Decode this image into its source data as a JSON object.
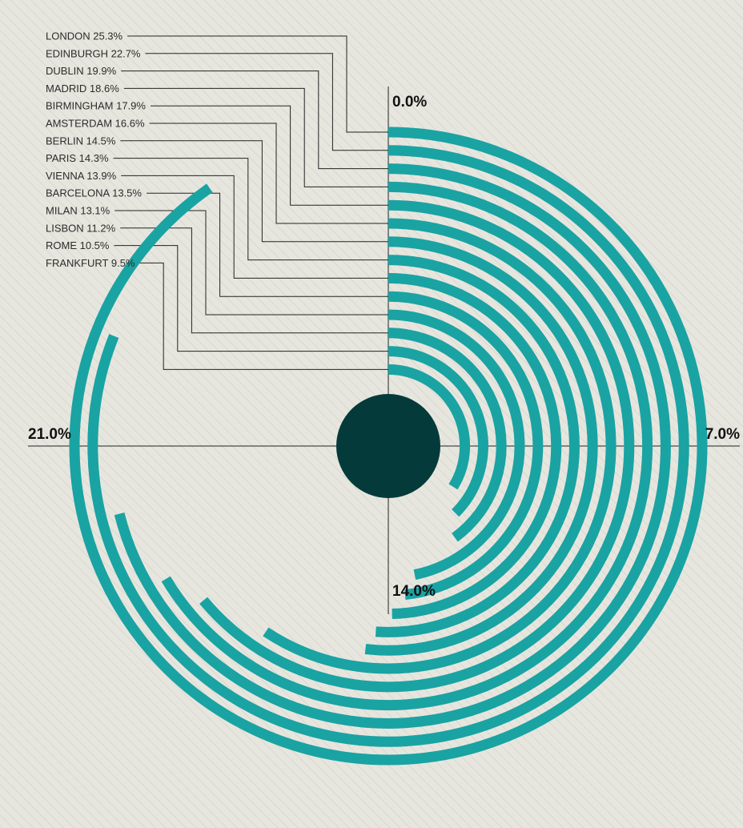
{
  "chart_data": {
    "type": "radial-bar",
    "unit": "%",
    "axis_labels": {
      "top": "0.0%",
      "right": "7.0%",
      "bottom": "14.0%",
      "left": "21.0%"
    },
    "full_circle_value": 28,
    "categories": [
      "LONDON",
      "EDINBURGH",
      "DUBLIN",
      "MADRID",
      "BIRMINGHAM",
      "AMSTERDAM",
      "BERLIN",
      "PARIS",
      "VIENNA",
      "BARCELONA",
      "MILAN",
      "LISBON",
      "ROME",
      "FRANKFURT"
    ],
    "values": [
      25.3,
      22.7,
      19.9,
      18.6,
      17.9,
      16.6,
      14.5,
      14.3,
      13.9,
      13.5,
      13.1,
      11.2,
      10.5,
      9.5
    ],
    "labels": [
      "LONDON 25.3%",
      "EDINBURGH 22.7%",
      "DUBLIN 19.9%",
      "MADRID 18.6%",
      "BIRMINGHAM 17.9%",
      "AMSTERDAM 16.6%",
      "BERLIN 14.5%",
      "PARIS 14.3%",
      "VIENNA 13.9%",
      "BARCELONA 13.5%",
      "MILAN 13.1%",
      "LISBON 11.2%",
      "ROME 10.5%",
      "FRANKFURT 9.5%"
    ],
    "colors": {
      "bar": "#1aa3a3",
      "center": "#053a3a",
      "background": "#e6e6df",
      "hatch": "#cfcfc8",
      "lines": "#222222"
    }
  }
}
